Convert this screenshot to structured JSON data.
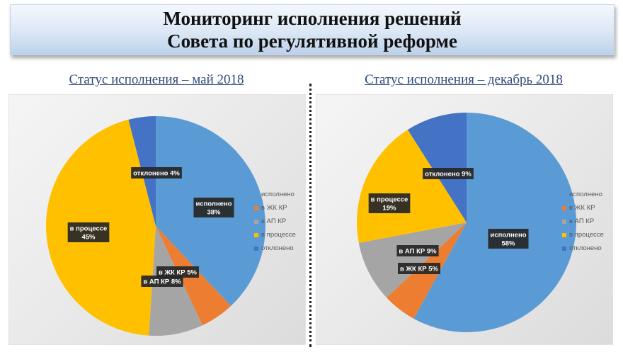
{
  "header": {
    "title_line1": "Мониторинг исполнения решений",
    "title_line2": "Совета по регулятивной реформе"
  },
  "chart_data": [
    {
      "type": "pie",
      "title": "Статус исполнения – май 2018",
      "legend_position": "right",
      "slices": [
        {
          "name": "исполнено",
          "value": 38,
          "color": "#5b9bd5",
          "label": "исполнено\n38%"
        },
        {
          "name": "в ЖК КР",
          "value": 5,
          "color": "#ed7d31",
          "label": "в ЖК КР 5%"
        },
        {
          "name": "в АП КР",
          "value": 8,
          "color": "#a5a5a5",
          "label": "в АП КР  8%"
        },
        {
          "name": "в процессе",
          "value": 45,
          "color": "#ffc000",
          "label": "в процессе\n45%"
        },
        {
          "name": "отклонено",
          "value": 4,
          "color": "#4472c4",
          "label": "отклонено 4%"
        }
      ]
    },
    {
      "type": "pie",
      "title": "Статус исполнения – декабрь 2018",
      "legend_position": "right",
      "slices": [
        {
          "name": "исполнено",
          "value": 58,
          "color": "#5b9bd5",
          "label": "исполнено\n58%"
        },
        {
          "name": "в ЖК КР",
          "value": 5,
          "color": "#ed7d31",
          "label": "в ЖК КР 5%"
        },
        {
          "name": "в АП КР",
          "value": 9,
          "color": "#a5a5a5",
          "label": "в АП КР 9%"
        },
        {
          "name": "в процессе",
          "value": 19,
          "color": "#ffc000",
          "label": "в процессе\n19%"
        },
        {
          "name": "отклонено",
          "value": 9,
          "color": "#4472c4",
          "label": "отклонено 9%"
        }
      ]
    }
  ]
}
